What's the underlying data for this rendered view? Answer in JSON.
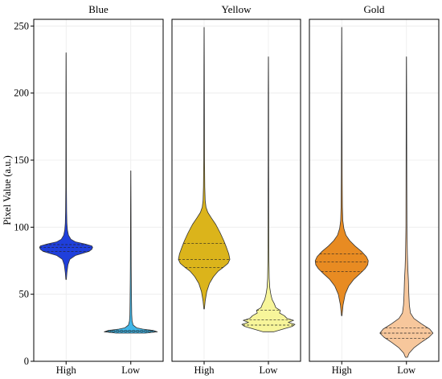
{
  "chart_data": {
    "type": "violin",
    "ylabel": "Pixel Value (a.u.)",
    "ylim": [
      0,
      255
    ],
    "yticks": [
      0,
      50,
      100,
      150,
      200,
      250
    ],
    "categories": [
      "High",
      "Low"
    ],
    "grid": true,
    "panels": [
      {
        "title": "Blue",
        "violins": [
          {
            "category": "High",
            "color": "#1f3fdb",
            "min": 61,
            "max": 230,
            "quartiles": [
              82,
              85,
              87
            ],
            "profile": [
              [
                61,
                0.01
              ],
              [
                66,
                0.03
              ],
              [
                72,
                0.07
              ],
              [
                76,
                0.14
              ],
              [
                79,
                0.36
              ],
              [
                80.5,
                0.62
              ],
              [
                82,
                0.87
              ],
              [
                83.5,
                0.97
              ],
              [
                85,
                1.0
              ],
              [
                86,
                0.97
              ],
              [
                87.5,
                0.7
              ],
              [
                89,
                0.36
              ],
              [
                91,
                0.18
              ],
              [
                94,
                0.09
              ],
              [
                98,
                0.05
              ],
              [
                103,
                0.03
              ],
              [
                112,
                0.02
              ],
              [
                130,
                0.012
              ],
              [
                160,
                0.009
              ],
              [
                200,
                0.007
              ],
              [
                230,
                0.003
              ]
            ]
          },
          {
            "category": "Low",
            "color": "#3fb6e8",
            "min": 21,
            "max": 142,
            "quartiles": [
              22,
              22.5,
              23
            ],
            "profile": [
              [
                21,
                0.55
              ],
              [
                22,
                1.0
              ],
              [
                23,
                0.85
              ],
              [
                24,
                0.45
              ],
              [
                25,
                0.22
              ],
              [
                27,
                0.09
              ],
              [
                30,
                0.05
              ],
              [
                35,
                0.035
              ],
              [
                45,
                0.028
              ],
              [
                60,
                0.02
              ],
              [
                70,
                0.016
              ],
              [
                90,
                0.012
              ],
              [
                120,
                0.008
              ],
              [
                142,
                0.003
              ]
            ]
          }
        ]
      },
      {
        "title": "Yellow",
        "violins": [
          {
            "category": "High",
            "color": "#dbb41b",
            "min": 39,
            "max": 249,
            "quartiles": [
              70,
              76,
              88
            ],
            "profile": [
              [
                39,
                0.01
              ],
              [
                45,
                0.04
              ],
              [
                52,
                0.1
              ],
              [
                58,
                0.2
              ],
              [
                63,
                0.35
              ],
              [
                67,
                0.52
              ],
              [
                70,
                0.72
              ],
              [
                73,
                0.9
              ],
              [
                76,
                0.97
              ],
              [
                80,
                0.93
              ],
              [
                85,
                0.84
              ],
              [
                90,
                0.74
              ],
              [
                96,
                0.6
              ],
              [
                102,
                0.44
              ],
              [
                107,
                0.27
              ],
              [
                111,
                0.14
              ],
              [
                115,
                0.07
              ],
              [
                120,
                0.04
              ],
              [
                130,
                0.025
              ],
              [
                150,
                0.015
              ],
              [
                180,
                0.012
              ],
              [
                220,
                0.008
              ],
              [
                249,
                0.003
              ]
            ]
          },
          {
            "category": "Low",
            "color": "#f7f59a",
            "min": 22,
            "max": 227,
            "quartiles": [
              27,
              31,
              38
            ],
            "profile": [
              [
                22,
                0.2
              ],
              [
                24,
                0.55
              ],
              [
                26,
                0.9
              ],
              [
                27.5,
                1.0
              ],
              [
                29,
                0.75
              ],
              [
                30.5,
                0.95
              ],
              [
                32,
                0.7
              ],
              [
                34,
                0.6
              ],
              [
                36,
                0.42
              ],
              [
                38,
                0.45
              ],
              [
                40,
                0.28
              ],
              [
                43,
                0.22
              ],
              [
                46,
                0.14
              ],
              [
                50,
                0.09
              ],
              [
                55,
                0.05
              ],
              [
                62,
                0.03
              ],
              [
                75,
                0.02
              ],
              [
                100,
                0.015
              ],
              [
                150,
                0.01
              ],
              [
                200,
                0.008
              ],
              [
                227,
                0.003
              ]
            ]
          }
        ]
      },
      {
        "title": "Gold",
        "violins": [
          {
            "category": "High",
            "color": "#e88b22",
            "min": 34,
            "max": 249,
            "quartiles": [
              67,
              74,
              80
            ],
            "profile": [
              [
                34,
                0.01
              ],
              [
                42,
                0.05
              ],
              [
                50,
                0.13
              ],
              [
                56,
                0.26
              ],
              [
                61,
                0.45
              ],
              [
                65,
                0.67
              ],
              [
                69,
                0.88
              ],
              [
                72,
                0.98
              ],
              [
                75,
                1.0
              ],
              [
                78,
                0.93
              ],
              [
                82,
                0.74
              ],
              [
                86,
                0.5
              ],
              [
                90,
                0.3
              ],
              [
                94,
                0.16
              ],
              [
                99,
                0.08
              ],
              [
                105,
                0.04
              ],
              [
                115,
                0.025
              ],
              [
                140,
                0.015
              ],
              [
                180,
                0.01
              ],
              [
                220,
                0.007
              ],
              [
                249,
                0.003
              ]
            ]
          },
          {
            "category": "Low",
            "color": "#f7c79c",
            "min": 3,
            "max": 227,
            "quartiles": [
              17,
              21,
              25
            ],
            "profile": [
              [
                3,
                0.04
              ],
              [
                6,
                0.1
              ],
              [
                10,
                0.28
              ],
              [
                14,
                0.55
              ],
              [
                18,
                0.85
              ],
              [
                21,
                1.0
              ],
              [
                24,
                0.88
              ],
              [
                28,
                0.56
              ],
              [
                32,
                0.28
              ],
              [
                36,
                0.15
              ],
              [
                42,
                0.11
              ],
              [
                50,
                0.09
              ],
              [
                60,
                0.075
              ],
              [
                70,
                0.05
              ],
              [
                80,
                0.035
              ],
              [
                100,
                0.02
              ],
              [
                130,
                0.015
              ],
              [
                160,
                0.012
              ],
              [
                200,
                0.008
              ],
              [
                227,
                0.003
              ]
            ]
          }
        ]
      }
    ]
  }
}
